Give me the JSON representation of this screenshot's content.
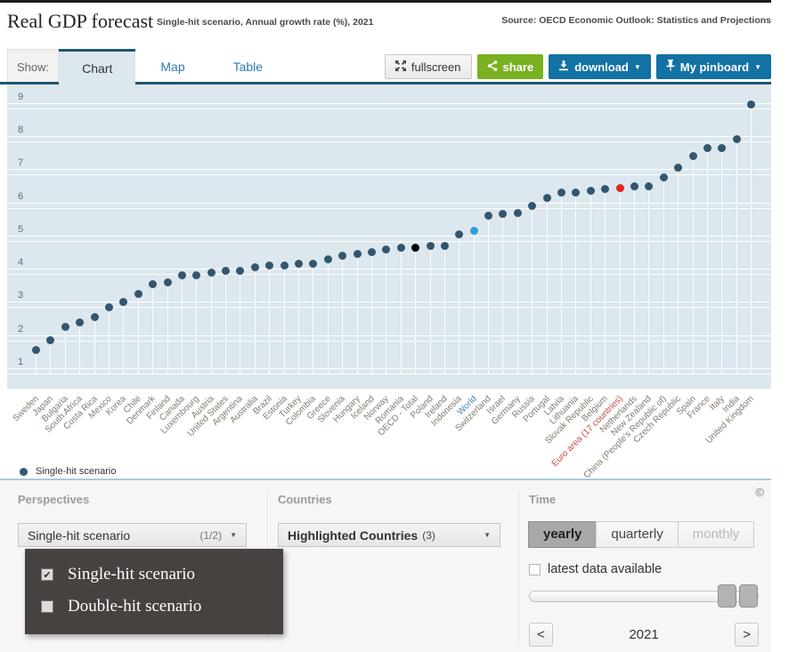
{
  "header": {
    "title": "Real GDP forecast",
    "subtitle": "Single-hit scenario, Annual growth rate (%), 2021",
    "source": "Source: OECD Economic Outlook: Statistics and Projections"
  },
  "toolbar": {
    "show_label": "Show:",
    "tabs": [
      {
        "label": "Chart",
        "active": true
      },
      {
        "label": "Map",
        "active": false
      },
      {
        "label": "Table",
        "active": false
      }
    ],
    "fullscreen_label": "fullscreen",
    "share_label": "share",
    "download_label": "download",
    "pinboard_label": "My pinboard"
  },
  "colors": {
    "chart_background": "#dce7ee",
    "point_default": "#33566e",
    "point_oecd": "#000000",
    "point_world": "#2d9fd8",
    "point_euro_area": "#e02424",
    "label_world": "#4a86b8",
    "label_euro_area": "#c9473f",
    "tab_accent": "#1d566f",
    "button_blue": "#1272a3",
    "button_green": "#79b121"
  },
  "chart_data": {
    "type": "scatter",
    "title": "Real GDP forecast",
    "subtitle": "Single-hit scenario, Annual growth rate (%), 2021",
    "series_name": "Single-hit scenario",
    "ylabel": "Annual growth rate (%)",
    "ylim": [
      1,
      9
    ],
    "yticks": [
      1,
      2,
      3,
      4,
      5,
      6,
      7,
      8,
      9
    ],
    "grid": "horizontal white lines on light blue, white stems under points",
    "legend_position": "bottom-left",
    "points": [
      {
        "country": "Sweden",
        "value": 1.5
      },
      {
        "country": "Japan",
        "value": 1.8
      },
      {
        "country": "Bulgaria",
        "value": 2.2
      },
      {
        "country": "South Africa",
        "value": 2.35
      },
      {
        "country": "Costa Rica",
        "value": 2.5
      },
      {
        "country": "Mexico",
        "value": 2.8
      },
      {
        "country": "Korea",
        "value": 2.95
      },
      {
        "country": "Chile",
        "value": 3.2
      },
      {
        "country": "Denmark",
        "value": 3.5
      },
      {
        "country": "Finland",
        "value": 3.55
      },
      {
        "country": "Canada",
        "value": 3.75
      },
      {
        "country": "Luxembourg",
        "value": 3.75
      },
      {
        "country": "Austria",
        "value": 3.85
      },
      {
        "country": "United States",
        "value": 3.9
      },
      {
        "country": "Argentina",
        "value": 3.9
      },
      {
        "country": "Australia",
        "value": 4.0
      },
      {
        "country": "Brazil",
        "value": 4.05
      },
      {
        "country": "Estonia",
        "value": 4.05
      },
      {
        "country": "Turkey",
        "value": 4.1
      },
      {
        "country": "Colombia",
        "value": 4.1
      },
      {
        "country": "Greece",
        "value": 4.25
      },
      {
        "country": "Slovenia",
        "value": 4.35
      },
      {
        "country": "Hungary",
        "value": 4.4
      },
      {
        "country": "Iceland",
        "value": 4.45
      },
      {
        "country": "Norway",
        "value": 4.55
      },
      {
        "country": "Romania",
        "value": 4.6
      },
      {
        "country": "OECD - Total",
        "value": 4.6,
        "dot_color": "#000000"
      },
      {
        "country": "Poland",
        "value": 4.65
      },
      {
        "country": "Ireland",
        "value": 4.65
      },
      {
        "country": "Indonesia",
        "value": 5.0
      },
      {
        "country": "World",
        "value": 5.1,
        "dot_color": "#2d9fd8",
        "label_color": "#4a86b8"
      },
      {
        "country": "Switzerland",
        "value": 5.55
      },
      {
        "country": "Israel",
        "value": 5.6
      },
      {
        "country": "Germany",
        "value": 5.65
      },
      {
        "country": "Russia",
        "value": 5.85
      },
      {
        "country": "Portugal",
        "value": 6.1
      },
      {
        "country": "Latvia",
        "value": 6.25
      },
      {
        "country": "Lithuania",
        "value": 6.25
      },
      {
        "country": "Slovak Republic",
        "value": 6.3
      },
      {
        "country": "Belgium",
        "value": 6.35
      },
      {
        "country": "Euro area (17 countries)",
        "value": 6.4,
        "dot_color": "#e02424",
        "label_color": "#c9473f"
      },
      {
        "country": "Netherlands",
        "value": 6.45
      },
      {
        "country": "New Zealand",
        "value": 6.45
      },
      {
        "country": "China (People's Republic of)",
        "value": 6.7
      },
      {
        "country": "Czech Republic",
        "value": 7.0
      },
      {
        "country": "Spain",
        "value": 7.35
      },
      {
        "country": "France",
        "value": 7.6
      },
      {
        "country": "Italy",
        "value": 7.6
      },
      {
        "country": "India",
        "value": 7.85
      },
      {
        "country": "United Kingdom",
        "value": 8.9
      }
    ]
  },
  "legend": {
    "label": "Single-hit scenario"
  },
  "filters": {
    "perspectives": {
      "label": "Perspectives",
      "selected": "Single-hit scenario",
      "count": "(1/2)",
      "options": [
        {
          "label": "Single-hit scenario",
          "checked": true
        },
        {
          "label": "Double-hit scenario",
          "checked": false
        }
      ]
    },
    "countries": {
      "label": "Countries",
      "selected": "Highlighted Countries",
      "count": "(3)"
    },
    "time": {
      "label": "Time",
      "modes": [
        {
          "label": "yearly",
          "active": true,
          "disabled": false
        },
        {
          "label": "quarterly",
          "active": false,
          "disabled": false
        },
        {
          "label": "monthly",
          "active": false,
          "disabled": true
        }
      ],
      "latest_label": "latest data available",
      "year": "2021"
    }
  },
  "icons": {
    "caret_down": "▼",
    "check": "✔",
    "copyright": "©",
    "prev_arrow": "<",
    "next_arrow": ">"
  }
}
